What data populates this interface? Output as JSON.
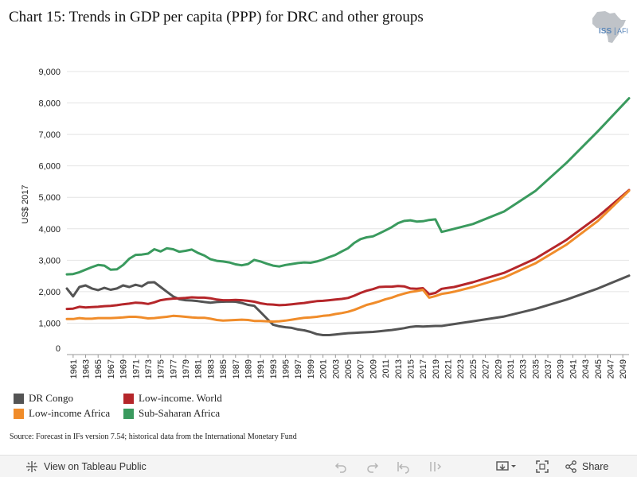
{
  "title": "Chart 15: Trends in GDP per capita (PPP) for DRC and other groups",
  "logo": {
    "text_iss": "ISS",
    "text_afi": "AFI",
    "color_iss": "#5a86b8",
    "color_map": "#bfc3c8"
  },
  "source": "Source: Forecast in IFs version 7.54; historical data from the International Monetary Fund",
  "toolbar": {
    "view_label": "View on Tableau Public",
    "share_label": "Share"
  },
  "legend": [
    {
      "label": "DR Congo",
      "color": "#545454"
    },
    {
      "label": "Low-income. World",
      "color": "#b5262a"
    },
    {
      "label": "Low-income Africa",
      "color": "#f08c2a"
    },
    {
      "label": "Sub-Saharan Africa",
      "color": "#3a9a5e"
    }
  ],
  "chart_data": {
    "type": "line",
    "title": "Chart 15: Trends in GDP per capita (PPP) for DRC and other groups",
    "ylabel": "US$ 2017",
    "xlabel": "",
    "ylim": [
      0,
      9000
    ],
    "xlim": [
      1960,
      2050
    ],
    "yticks": [
      0,
      1000,
      2000,
      3000,
      4000,
      5000,
      6000,
      7000,
      8000,
      9000
    ],
    "ytick_labels": [
      "0",
      "1,000",
      "2,000",
      "3,000",
      "4,000",
      "5,000",
      "6,000",
      "7,000",
      "8,000",
      "9,000"
    ],
    "xticks": [
      1961,
      1963,
      1965,
      1967,
      1969,
      1971,
      1973,
      1975,
      1977,
      1979,
      1981,
      1983,
      1985,
      1987,
      1989,
      1991,
      1993,
      1995,
      1997,
      1999,
      2001,
      2003,
      2005,
      2007,
      2009,
      2011,
      2013,
      2015,
      2017,
      2019,
      2021,
      2023,
      2025,
      2027,
      2029,
      2031,
      2033,
      2035,
      2037,
      2039,
      2041,
      2043,
      2045,
      2047,
      2049
    ],
    "grid": "horizontal",
    "legend_position": "bottom",
    "series": [
      {
        "name": "DR Congo",
        "color": "#545454",
        "x": [
          1960,
          1961,
          1962,
          1963,
          1964,
          1965,
          1966,
          1967,
          1968,
          1969,
          1970,
          1971,
          1972,
          1973,
          1974,
          1975,
          1976,
          1977,
          1978,
          1979,
          1980,
          1981,
          1982,
          1983,
          1984,
          1985,
          1986,
          1987,
          1988,
          1989,
          1990,
          1991,
          1992,
          1993,
          1994,
          1995,
          1996,
          1997,
          1998,
          1999,
          2000,
          2001,
          2002,
          2003,
          2004,
          2005,
          2006,
          2007,
          2008,
          2009,
          2010,
          2011,
          2012,
          2013,
          2014,
          2015,
          2016,
          2017,
          2018,
          2019,
          2020,
          2021,
          2022,
          2025,
          2030,
          2035,
          2040,
          2045,
          2050
        ],
        "y": [
          2100,
          1850,
          2150,
          2200,
          2100,
          2050,
          2120,
          2060,
          2100,
          2200,
          2150,
          2220,
          2170,
          2290,
          2300,
          2150,
          2000,
          1850,
          1760,
          1730,
          1720,
          1700,
          1670,
          1650,
          1670,
          1680,
          1690,
          1680,
          1640,
          1580,
          1550,
          1350,
          1150,
          950,
          900,
          870,
          850,
          800,
          770,
          720,
          650,
          620,
          620,
          640,
          660,
          680,
          690,
          700,
          710,
          720,
          740,
          760,
          780,
          810,
          840,
          880,
          900,
          890,
          900,
          910,
          910,
          940,
          970,
          1060,
          1210,
          1450,
          1750,
          2100,
          2510
        ]
      },
      {
        "name": "Low-income. World",
        "color": "#b5262a",
        "x": [
          1960,
          1961,
          1962,
          1963,
          1964,
          1965,
          1966,
          1967,
          1968,
          1969,
          1970,
          1971,
          1972,
          1973,
          1974,
          1975,
          1976,
          1977,
          1978,
          1979,
          1980,
          1981,
          1982,
          1983,
          1984,
          1985,
          1986,
          1987,
          1988,
          1989,
          1990,
          1991,
          1992,
          1993,
          1994,
          1995,
          1996,
          1997,
          1998,
          1999,
          2000,
          2001,
          2002,
          2003,
          2004,
          2005,
          2006,
          2007,
          2008,
          2009,
          2010,
          2011,
          2012,
          2013,
          2014,
          2015,
          2016,
          2017,
          2018,
          2019,
          2020,
          2021,
          2022,
          2025,
          2030,
          2035,
          2040,
          2045,
          2050
        ],
        "y": [
          1450,
          1460,
          1520,
          1500,
          1510,
          1520,
          1540,
          1550,
          1570,
          1600,
          1620,
          1650,
          1640,
          1610,
          1660,
          1730,
          1760,
          1780,
          1790,
          1800,
          1820,
          1810,
          1810,
          1790,
          1750,
          1730,
          1730,
          1740,
          1730,
          1710,
          1680,
          1630,
          1600,
          1590,
          1570,
          1580,
          1600,
          1620,
          1640,
          1670,
          1700,
          1710,
          1730,
          1750,
          1770,
          1800,
          1870,
          1960,
          2030,
          2080,
          2150,
          2160,
          2160,
          2180,
          2170,
          2100,
          2090,
          2110,
          1920,
          1960,
          2090,
          2120,
          2150,
          2300,
          2600,
          3050,
          3650,
          4380,
          5230
        ]
      },
      {
        "name": "Low-income Africa",
        "color": "#f08c2a",
        "x": [
          1960,
          1961,
          1962,
          1963,
          1964,
          1965,
          1966,
          1967,
          1968,
          1969,
          1970,
          1971,
          1972,
          1973,
          1974,
          1975,
          1976,
          1977,
          1978,
          1979,
          1980,
          1981,
          1982,
          1983,
          1984,
          1985,
          1986,
          1987,
          1988,
          1989,
          1990,
          1991,
          1992,
          1993,
          1994,
          1995,
          1996,
          1997,
          1998,
          1999,
          2000,
          2001,
          2002,
          2003,
          2004,
          2005,
          2006,
          2007,
          2008,
          2009,
          2010,
          2011,
          2012,
          2013,
          2014,
          2015,
          2016,
          2017,
          2018,
          2019,
          2020,
          2021,
          2022,
          2025,
          2030,
          2035,
          2040,
          2045,
          2050
        ],
        "y": [
          1130,
          1130,
          1160,
          1140,
          1140,
          1160,
          1160,
          1160,
          1170,
          1180,
          1200,
          1200,
          1180,
          1150,
          1160,
          1180,
          1200,
          1230,
          1220,
          1200,
          1180,
          1170,
          1170,
          1140,
          1100,
          1080,
          1090,
          1100,
          1110,
          1100,
          1070,
          1070,
          1060,
          1050,
          1060,
          1080,
          1110,
          1140,
          1170,
          1180,
          1200,
          1230,
          1250,
          1290,
          1320,
          1360,
          1420,
          1500,
          1580,
          1630,
          1690,
          1760,
          1810,
          1880,
          1940,
          1990,
          2020,
          2060,
          1810,
          1860,
          1930,
          1960,
          2000,
          2150,
          2450,
          2900,
          3500,
          4250,
          5210
        ]
      },
      {
        "name": "Sub-Saharan Africa",
        "color": "#3a9a5e",
        "x": [
          1960,
          1961,
          1962,
          1963,
          1964,
          1965,
          1966,
          1967,
          1968,
          1969,
          1970,
          1971,
          1972,
          1973,
          1974,
          1975,
          1976,
          1977,
          1978,
          1979,
          1980,
          1981,
          1982,
          1983,
          1984,
          1985,
          1986,
          1987,
          1988,
          1989,
          1990,
          1991,
          1992,
          1993,
          1994,
          1995,
          1996,
          1997,
          1998,
          1999,
          2000,
          2001,
          2002,
          2003,
          2004,
          2005,
          2006,
          2007,
          2008,
          2009,
          2010,
          2011,
          2012,
          2013,
          2014,
          2015,
          2016,
          2017,
          2018,
          2019,
          2020,
          2021,
          2022,
          2025,
          2030,
          2035,
          2040,
          2045,
          2050
        ],
        "y": [
          2550,
          2560,
          2620,
          2700,
          2780,
          2850,
          2830,
          2700,
          2710,
          2850,
          3050,
          3170,
          3180,
          3210,
          3350,
          3280,
          3380,
          3350,
          3270,
          3300,
          3340,
          3230,
          3150,
          3030,
          2980,
          2960,
          2930,
          2870,
          2840,
          2880,
          3010,
          2960,
          2890,
          2830,
          2800,
          2850,
          2880,
          2910,
          2930,
          2920,
          2960,
          3020,
          3100,
          3170,
          3280,
          3380,
          3550,
          3670,
          3730,
          3760,
          3850,
          3950,
          4050,
          4180,
          4250,
          4270,
          4230,
          4240,
          4280,
          4300,
          3900,
          3950,
          4000,
          4150,
          4550,
          5200,
          6100,
          7100,
          8150
        ]
      }
    ]
  }
}
